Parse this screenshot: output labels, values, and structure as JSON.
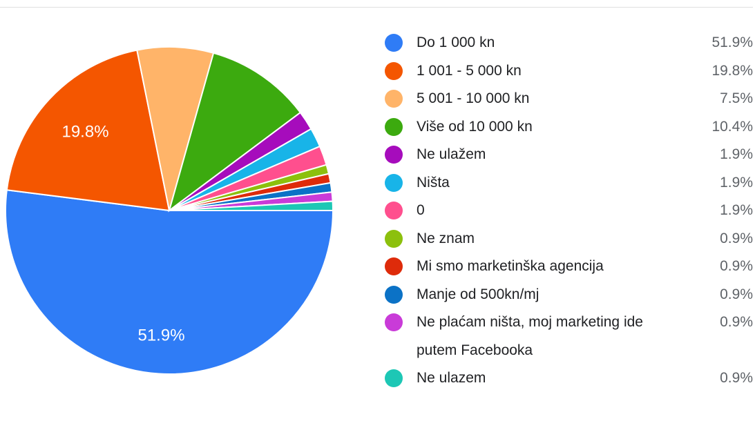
{
  "chart_data": {
    "type": "pie",
    "categories": [
      "Do 1 000 kn",
      "1 001 - 5 000 kn",
      "5 001 - 10 000 kn",
      "Više od 10 000 kn",
      "Ne ulažem",
      "Ništa",
      "0",
      "Ne znam",
      "Mi smo marketinška agencija",
      "Manje od 500kn/mj",
      "Ne plaćam ništa, moj marketing ide putem Facebooka",
      "Ne ulazem"
    ],
    "values": [
      51.9,
      19.8,
      7.5,
      10.4,
      1.9,
      1.9,
      1.9,
      0.9,
      0.9,
      0.9,
      0.9,
      0.9
    ],
    "value_labels": [
      "51.9%",
      "19.8%",
      "7.5%",
      "10.4%",
      "1.9%",
      "1.9%",
      "1.9%",
      "0.9%",
      "0.9%",
      "0.9%",
      "0.9%",
      "0.9%"
    ],
    "colors": [
      "#2f7cf6",
      "#f45600",
      "#ffb469",
      "#3caa0f",
      "#a60cbc",
      "#18b4e8",
      "#ff4f8e",
      "#8cc00d",
      "#de2b0a",
      "#0b72c6",
      "#c93bd8",
      "#1dc7b5"
    ],
    "legend": "right"
  }
}
